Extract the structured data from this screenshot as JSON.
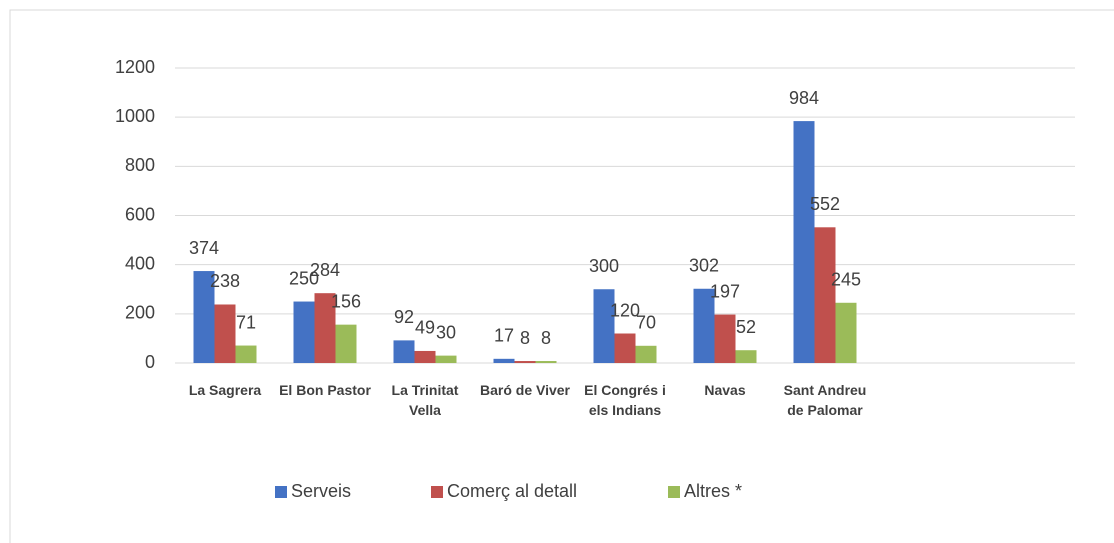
{
  "chart_data": {
    "type": "bar",
    "categories": [
      "La Sagrera",
      "El Bon Pastor",
      "La Trinitat Vella",
      "Baró de Viver",
      "El Congrés i els Indians",
      "Navas",
      "Sant Andreu de Palomar",
      null,
      null
    ],
    "series": [
      {
        "name": "Serveis",
        "color": "#4472c4",
        "values": [
          374,
          250,
          92,
          17,
          300,
          302,
          984,
          null,
          null
        ]
      },
      {
        "name": "Comerç al detall",
        "color": "#c0504d",
        "values": [
          238,
          284,
          49,
          8,
          120,
          197,
          552,
          null,
          null
        ]
      },
      {
        "name": "Altres *",
        "color": "#9bbb59",
        "values": [
          71,
          156,
          30,
          8,
          70,
          52,
          245,
          null,
          null
        ]
      }
    ],
    "ylim": [
      0,
      1200
    ],
    "yticks": [
      0,
      200,
      400,
      600,
      800,
      1000,
      1200
    ],
    "grid": true,
    "legend": "bottom"
  }
}
